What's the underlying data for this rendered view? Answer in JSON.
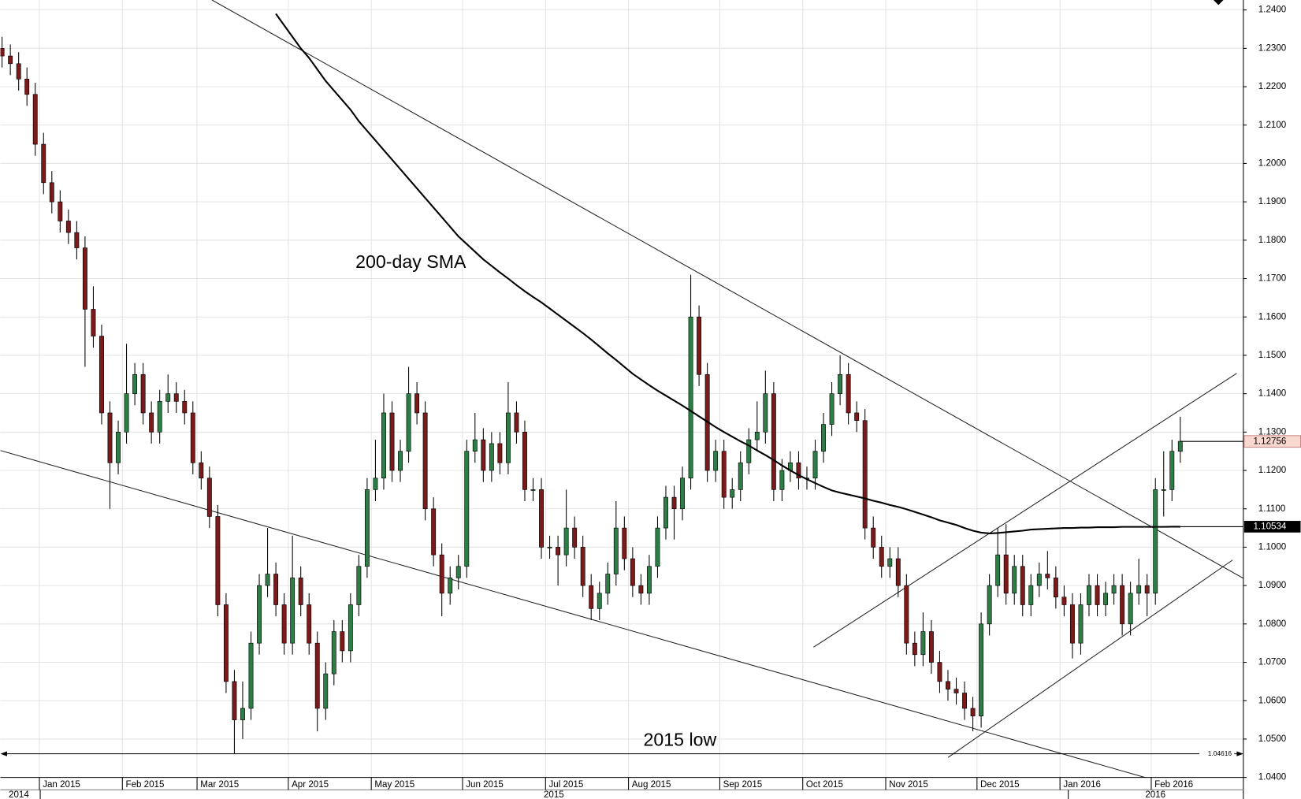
{
  "chart_data": {
    "type": "candlestick",
    "categories": [
      null,
      null,
      null,
      null,
      null,
      "Jan 2015",
      null,
      null,
      null,
      null,
      null,
      null,
      null,
      null,
      null,
      "Feb 2015",
      null,
      null,
      null,
      null,
      null,
      null,
      null,
      null,
      "Mar 2015",
      null,
      null,
      null,
      null,
      null,
      null,
      null,
      null,
      null,
      null,
      "Apr 2015",
      null,
      null,
      null,
      null,
      null,
      null,
      null,
      null,
      null,
      "May 2015",
      null,
      null,
      null,
      null,
      null,
      null,
      null,
      null,
      null,
      null,
      "Jun 2015",
      null,
      null,
      null,
      null,
      null,
      null,
      null,
      null,
      null,
      "Jul 2015",
      null,
      null,
      null,
      null,
      null,
      null,
      null,
      null,
      null,
      "Aug 2015",
      null,
      null,
      null,
      null,
      null,
      null,
      null,
      null,
      null,
      null,
      "Sep 2015",
      null,
      null,
      null,
      null,
      null,
      null,
      null,
      null,
      null,
      "Oct 2015",
      null,
      null,
      null,
      null,
      null,
      null,
      null,
      null,
      null,
      "Nov 2015",
      null,
      null,
      null,
      null,
      null,
      null,
      null,
      null,
      null,
      null,
      "Dec 2015",
      null,
      null,
      null,
      null,
      null,
      null,
      null,
      null,
      null,
      "Jan 2016",
      null,
      null,
      null,
      null,
      null,
      null,
      null,
      null,
      null,
      null,
      "Feb 2016",
      null,
      null,
      null
    ],
    "years": [
      "2014",
      "2015",
      "2016"
    ],
    "open": [
      1.23,
      1.228,
      1.226,
      1.222,
      1.218,
      1.205,
      1.195,
      1.19,
      1.185,
      1.182,
      1.178,
      1.162,
      1.155,
      1.135,
      1.122,
      1.13,
      1.14,
      1.145,
      1.135,
      1.13,
      1.138,
      1.14,
      1.138,
      1.135,
      1.122,
      1.118,
      1.108,
      1.085,
      1.065,
      1.055,
      1.058,
      1.075,
      1.09,
      1.093,
      1.085,
      1.075,
      1.092,
      1.085,
      1.075,
      1.058,
      1.067,
      1.078,
      1.073,
      1.085,
      1.095,
      1.115,
      1.118,
      1.135,
      1.12,
      1.125,
      1.14,
      1.135,
      1.11,
      1.098,
      1.088,
      1.092,
      1.095,
      1.125,
      1.128,
      1.12,
      1.127,
      1.122,
      1.135,
      1.13,
      1.115,
      1.115,
      1.1,
      1.1,
      1.098,
      1.105,
      1.1,
      1.09,
      1.084,
      1.088,
      1.093,
      1.105,
      1.097,
      1.09,
      1.088,
      1.095,
      1.105,
      1.113,
      1.11,
      1.118,
      1.16,
      1.145,
      1.12,
      1.125,
      1.113,
      1.115,
      1.122,
      1.128,
      1.13,
      1.14,
      1.115,
      1.12,
      1.122,
      1.118,
      1.118,
      1.125,
      1.132,
      1.14,
      1.145,
      1.135,
      1.133,
      1.105,
      1.1,
      1.095,
      1.097,
      1.09,
      1.075,
      1.072,
      1.078,
      1.07,
      1.065,
      1.063,
      1.062,
      1.058,
      1.056,
      1.08,
      1.09,
      1.098,
      1.088,
      1.095,
      1.085,
      1.09,
      1.093,
      1.092,
      1.087,
      1.085,
      1.075,
      1.085,
      1.09,
      1.085,
      1.088,
      1.09,
      1.08,
      1.088,
      1.09,
      1.088,
      1.115,
      1.115,
      1.125
    ],
    "high": [
      1.233,
      1.231,
      1.229,
      1.225,
      1.221,
      1.208,
      1.198,
      1.193,
      1.188,
      1.185,
      1.181,
      1.168,
      1.158,
      1.138,
      1.133,
      1.153,
      1.148,
      1.148,
      1.138,
      1.141,
      1.145,
      1.143,
      1.141,
      1.138,
      1.125,
      1.121,
      1.111,
      1.088,
      1.068,
      1.065,
      1.078,
      1.093,
      1.105,
      1.096,
      1.088,
      1.103,
      1.095,
      1.088,
      1.078,
      1.07,
      1.081,
      1.081,
      1.088,
      1.098,
      1.118,
      1.128,
      1.14,
      1.138,
      1.128,
      1.147,
      1.143,
      1.138,
      1.113,
      1.101,
      1.095,
      1.098,
      1.128,
      1.135,
      1.131,
      1.13,
      1.13,
      1.143,
      1.138,
      1.133,
      1.118,
      1.118,
      1.103,
      1.103,
      1.115,
      1.108,
      1.103,
      1.093,
      1.091,
      1.096,
      1.112,
      1.108,
      1.1,
      1.093,
      1.098,
      1.108,
      1.116,
      1.116,
      1.121,
      1.171,
      1.163,
      1.148,
      1.128,
      1.128,
      1.118,
      1.125,
      1.131,
      1.138,
      1.146,
      1.143,
      1.123,
      1.125,
      1.125,
      1.121,
      1.128,
      1.135,
      1.143,
      1.15,
      1.148,
      1.138,
      1.136,
      1.108,
      1.103,
      1.1,
      1.1,
      1.093,
      1.078,
      1.083,
      1.081,
      1.073,
      1.068,
      1.066,
      1.065,
      1.061,
      1.083,
      1.093,
      1.105,
      1.106,
      1.098,
      1.098,
      1.093,
      1.096,
      1.099,
      1.095,
      1.09,
      1.088,
      1.088,
      1.093,
      1.093,
      1.091,
      1.093,
      1.093,
      1.091,
      1.097,
      1.093,
      1.118,
      1.125,
      1.128,
      1.134
    ],
    "low": [
      1.225,
      1.223,
      1.219,
      1.215,
      1.202,
      1.192,
      1.187,
      1.182,
      1.179,
      1.175,
      1.147,
      1.152,
      1.132,
      1.11,
      1.119,
      1.127,
      1.137,
      1.132,
      1.127,
      1.127,
      1.135,
      1.135,
      1.132,
      1.119,
      1.115,
      1.105,
      1.082,
      1.062,
      1.0462,
      1.05,
      1.055,
      1.072,
      1.087,
      1.082,
      1.072,
      1.072,
      1.082,
      1.072,
      1.052,
      1.055,
      1.064,
      1.07,
      1.07,
      1.082,
      1.092,
      1.112,
      1.115,
      1.117,
      1.117,
      1.122,
      1.132,
      1.107,
      1.095,
      1.082,
      1.085,
      1.089,
      1.092,
      1.122,
      1.117,
      1.117,
      1.119,
      1.119,
      1.127,
      1.112,
      1.112,
      1.097,
      1.097,
      1.09,
      1.095,
      1.097,
      1.087,
      1.081,
      1.081,
      1.085,
      1.09,
      1.094,
      1.087,
      1.085,
      1.085,
      1.092,
      1.102,
      1.102,
      1.107,
      1.115,
      1.142,
      1.117,
      1.117,
      1.11,
      1.11,
      1.112,
      1.119,
      1.125,
      1.127,
      1.112,
      1.112,
      1.117,
      1.115,
      1.115,
      1.115,
      1.122,
      1.129,
      1.137,
      1.132,
      1.13,
      1.102,
      1.097,
      1.092,
      1.092,
      1.087,
      1.072,
      1.069,
      1.069,
      1.067,
      1.062,
      1.06,
      1.059,
      1.055,
      1.052,
      1.053,
      1.077,
      1.087,
      1.085,
      1.085,
      1.082,
      1.082,
      1.087,
      1.089,
      1.084,
      1.082,
      1.071,
      1.072,
      1.082,
      1.082,
      1.082,
      1.085,
      1.077,
      1.077,
      1.085,
      1.082,
      1.085,
      1.108,
      1.112,
      1.122
    ],
    "close": [
      1.228,
      1.226,
      1.222,
      1.218,
      1.205,
      1.195,
      1.19,
      1.185,
      1.182,
      1.178,
      1.162,
      1.155,
      1.135,
      1.122,
      1.13,
      1.14,
      1.145,
      1.135,
      1.13,
      1.138,
      1.14,
      1.138,
      1.135,
      1.122,
      1.118,
      1.108,
      1.085,
      1.065,
      1.055,
      1.058,
      1.075,
      1.09,
      1.093,
      1.085,
      1.075,
      1.092,
      1.085,
      1.075,
      1.058,
      1.067,
      1.078,
      1.073,
      1.085,
      1.095,
      1.115,
      1.118,
      1.135,
      1.12,
      1.125,
      1.14,
      1.135,
      1.11,
      1.098,
      1.088,
      1.092,
      1.095,
      1.125,
      1.128,
      1.12,
      1.127,
      1.122,
      1.135,
      1.13,
      1.115,
      1.115,
      1.1,
      1.1,
      1.098,
      1.105,
      1.1,
      1.09,
      1.084,
      1.088,
      1.093,
      1.105,
      1.097,
      1.09,
      1.088,
      1.095,
      1.105,
      1.113,
      1.11,
      1.118,
      1.16,
      1.145,
      1.12,
      1.125,
      1.113,
      1.115,
      1.122,
      1.128,
      1.13,
      1.14,
      1.115,
      1.12,
      1.122,
      1.118,
      1.118,
      1.125,
      1.132,
      1.14,
      1.145,
      1.135,
      1.133,
      1.105,
      1.1,
      1.095,
      1.097,
      1.09,
      1.075,
      1.072,
      1.078,
      1.07,
      1.065,
      1.063,
      1.062,
      1.058,
      1.056,
      1.08,
      1.09,
      1.098,
      1.088,
      1.095,
      1.085,
      1.09,
      1.093,
      1.092,
      1.087,
      1.085,
      1.075,
      1.085,
      1.09,
      1.085,
      1.088,
      1.09,
      1.08,
      1.088,
      1.09,
      1.088,
      1.115,
      1.115,
      1.125,
      1.1276
    ],
    "up_color": "#2d7d46",
    "down_color": "#7a1a1a",
    "sma": {
      "color": "#000000",
      "values": [
        null,
        null,
        null,
        null,
        null,
        null,
        null,
        null,
        null,
        null,
        null,
        null,
        null,
        null,
        null,
        null,
        null,
        null,
        null,
        null,
        null,
        null,
        null,
        null,
        null,
        null,
        null,
        null,
        null,
        null,
        null,
        null,
        null,
        1.239,
        1.236,
        1.233,
        1.23,
        1.2275,
        1.2245,
        1.2215,
        1.219,
        1.2165,
        1.214,
        1.211,
        1.2085,
        1.206,
        1.2035,
        1.201,
        1.1985,
        1.196,
        1.1935,
        1.191,
        1.1885,
        1.186,
        1.1835,
        1.181,
        1.179,
        1.177,
        1.175,
        1.1733,
        1.1716,
        1.17,
        1.1683,
        1.1667,
        1.1652,
        1.1638,
        1.1622,
        1.1606,
        1.159,
        1.1574,
        1.1558,
        1.1541,
        1.1523,
        1.1505,
        1.1488,
        1.147,
        1.1452,
        1.1437,
        1.1422,
        1.1408,
        1.1395,
        1.1382,
        1.1369,
        1.1355,
        1.1341,
        1.1327,
        1.1313,
        1.13,
        1.1288,
        1.1276,
        1.1265,
        1.1252,
        1.124,
        1.1227,
        1.1213,
        1.12,
        1.1188,
        1.1177,
        1.1167,
        1.1157,
        1.1148,
        1.1142,
        1.1137,
        1.1132,
        1.1127,
        1.1121,
        1.1116,
        1.111,
        1.1105,
        1.1099,
        1.1092,
        1.1085,
        1.1078,
        1.107,
        1.1064,
        1.1058,
        1.105,
        1.1043,
        1.1038,
        1.1036,
        1.1037,
        1.1039,
        1.1041,
        1.1043,
        1.1046,
        1.1047,
        1.1048,
        1.1049,
        1.105,
        1.105,
        1.1051,
        1.1051,
        1.1052,
        1.1052,
        1.1052,
        1.1053,
        1.1053,
        1.1053,
        1.1053,
        1.1053,
        1.1053,
        1.10534,
        1.10534
      ]
    },
    "last_price": 1.12756,
    "sma_last": 1.10534,
    "low_2015": 1.04616,
    "annotations": [
      "200-day SMA",
      "2015 low"
    ],
    "ylim": [
      1.04,
      1.24
    ],
    "yticks": [
      {
        "value": 1.04,
        "label": "1.0400"
      },
      {
        "value": 1.05,
        "label": "1.0500"
      },
      {
        "value": 1.06,
        "label": "1.0600"
      },
      {
        "value": 1.07,
        "label": "1.0700"
      },
      {
        "value": 1.08,
        "label": "1.0800"
      },
      {
        "value": 1.09,
        "label": "1.0900"
      },
      {
        "value": 1.1,
        "label": "1.1000"
      },
      {
        "value": 1.11,
        "label": "1.1100"
      },
      {
        "value": 1.12,
        "label": "1.1200"
      },
      {
        "value": 1.13,
        "label": "1.1300"
      },
      {
        "value": 1.14,
        "label": "1.1400"
      },
      {
        "value": 1.15,
        "label": "1.1500"
      },
      {
        "value": 1.16,
        "label": "1.1600"
      },
      {
        "value": 1.17,
        "label": "1.1700"
      },
      {
        "value": 1.18,
        "label": "1.1800"
      },
      {
        "value": 1.19,
        "label": "1.1900"
      },
      {
        "value": 1.2,
        "label": "1.2000"
      },
      {
        "value": 1.21,
        "label": "1.2100"
      },
      {
        "value": 1.22,
        "label": "1.2200"
      },
      {
        "value": 1.23,
        "label": "1.2300"
      },
      {
        "value": 1.24,
        "label": "1.2400"
      }
    ],
    "grid": true
  }
}
